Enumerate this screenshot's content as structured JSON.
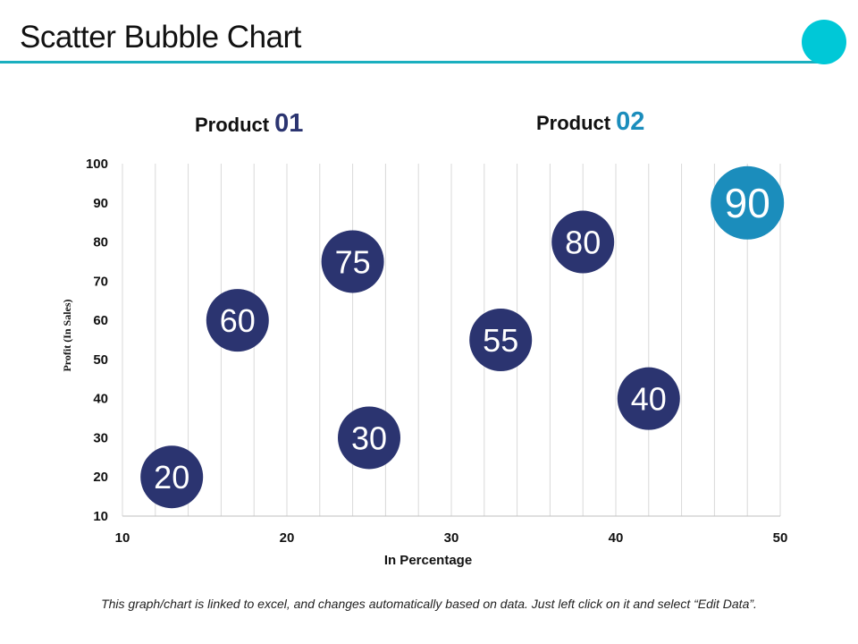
{
  "slide": {
    "title": "Scatter Bubble Chart",
    "footnote": "This graph/chart is linked to excel, and changes automatically based on data. Just left click on it and select “Edit Data”."
  },
  "legend": {
    "product1": {
      "label": "Product",
      "number": "01"
    },
    "product2": {
      "label": "Product",
      "number": "02"
    }
  },
  "colors": {
    "accent": "#00C8D7",
    "rule": "#1AAFBF",
    "product1": "#2B3470",
    "product2": "#1B8DBC",
    "grid": "#D9D9D9",
    "axis_text": "#111111",
    "bubble_text": "#ffffff"
  },
  "chart_data": {
    "type": "scatter",
    "xlabel": "In Percentage",
    "ylabel": "Profit   (In Sales)",
    "xlim": [
      10,
      50
    ],
    "ylim": [
      10,
      100
    ],
    "x_ticks": [
      10,
      20,
      30,
      40,
      50
    ],
    "y_ticks": [
      10,
      20,
      30,
      40,
      50,
      60,
      70,
      80,
      90,
      100
    ],
    "x_minor_step": 2,
    "grid": "vertical",
    "series": [
      {
        "name": "Product 01",
        "points": [
          {
            "x": 13,
            "y": 20,
            "label": "20"
          },
          {
            "x": 17,
            "y": 60,
            "label": "60"
          },
          {
            "x": 25,
            "y": 30,
            "label": "30"
          },
          {
            "x": 24,
            "y": 75,
            "label": "75"
          },
          {
            "x": 33,
            "y": 55,
            "label": "55"
          },
          {
            "x": 38,
            "y": 80,
            "label": "80"
          },
          {
            "x": 42,
            "y": 40,
            "label": "40"
          }
        ]
      },
      {
        "name": "Product 02",
        "points": [
          {
            "x": 48,
            "y": 90,
            "label": "90"
          }
        ]
      }
    ]
  }
}
